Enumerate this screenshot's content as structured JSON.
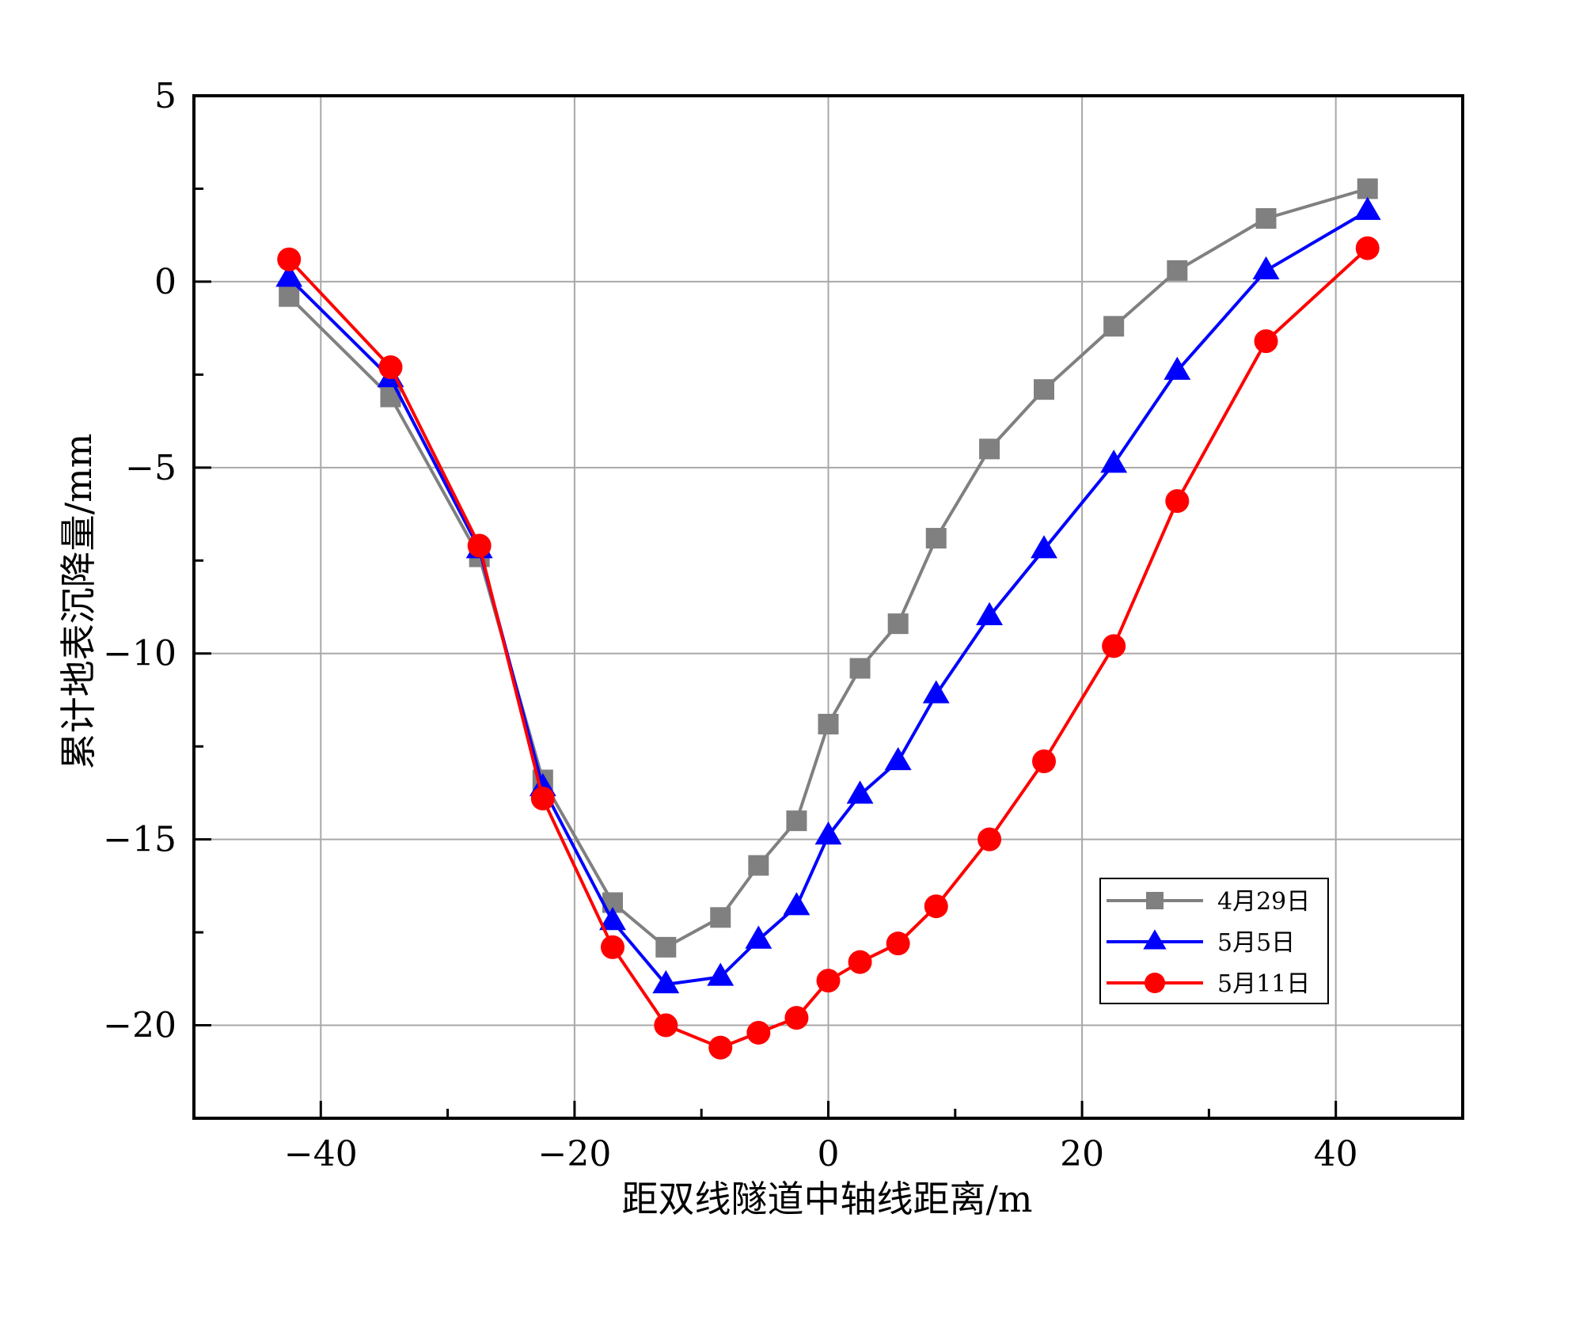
{
  "chart_data": {
    "type": "line",
    "title": "",
    "xlabel": "距双线隧道中轴线距离/m",
    "ylabel": "累计地表沉降量/mm",
    "xlim": [
      -50,
      50
    ],
    "ylim": [
      -22.5,
      5
    ],
    "xticks": [
      -40,
      -20,
      0,
      20,
      40
    ],
    "xtick_labels": [
      "−40",
      "−20",
      "0",
      "20",
      "40"
    ],
    "yticks": [
      5,
      0,
      -5,
      -10,
      -15,
      -20
    ],
    "ytick_labels": [
      "5",
      "0",
      "−5",
      "−10",
      "−15",
      "−20"
    ],
    "grid": true,
    "legend_position": "lower-right",
    "x": [
      -42.5,
      -34.5,
      -27.5,
      -22.5,
      -17.0,
      -12.8,
      -8.5,
      -5.5,
      -2.5,
      0.0,
      2.5,
      5.5,
      8.5,
      12.7,
      17.0,
      22.5,
      27.5,
      34.5,
      42.5
    ],
    "series": [
      {
        "name": "4月29日",
        "color": "#808080",
        "marker": "square",
        "values": [
          -0.4,
          -3.1,
          -7.4,
          -13.4,
          -16.7,
          -17.9,
          -17.1,
          -15.7,
          -14.5,
          -11.9,
          -10.4,
          -9.2,
          -6.9,
          -4.5,
          -2.9,
          -1.2,
          0.3,
          1.7,
          2.5
        ]
      },
      {
        "name": "5月5日",
        "color": "#0000ff",
        "marker": "triangle",
        "values": [
          0.1,
          -2.6,
          -7.2,
          -13.6,
          -17.2,
          -18.9,
          -18.7,
          -17.7,
          -16.8,
          -14.9,
          -13.8,
          -12.9,
          -11.1,
          -9.0,
          -7.2,
          -4.9,
          -2.4,
          0.3,
          1.9
        ]
      },
      {
        "name": "5月11日",
        "color": "#ff0000",
        "marker": "circle",
        "values": [
          0.6,
          -2.3,
          -7.1,
          -13.9,
          -17.9,
          -20.0,
          -20.6,
          -20.2,
          -19.8,
          -18.8,
          -18.3,
          -17.8,
          -16.8,
          -15.0,
          -12.9,
          -9.8,
          -5.9,
          -1.6,
          0.9
        ]
      }
    ]
  }
}
